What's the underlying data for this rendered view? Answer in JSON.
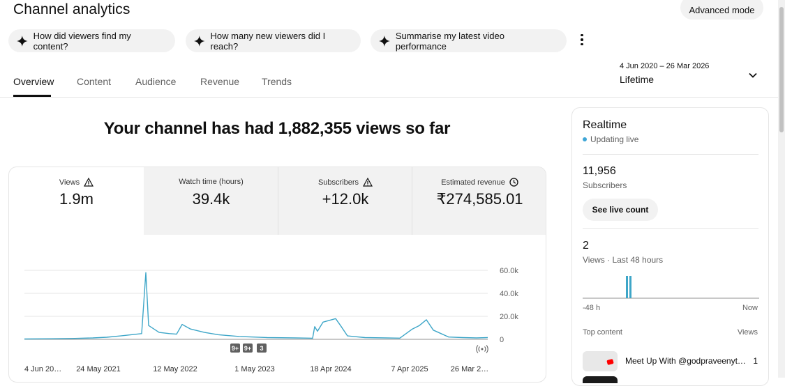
{
  "header": {
    "title": "Channel analytics",
    "advanced_mode_label": "Advanced mode"
  },
  "suggestions": [
    {
      "label": "How did viewers find my content?"
    },
    {
      "label": "How many new viewers did I reach?"
    },
    {
      "label": "Summarise my latest video performance"
    }
  ],
  "tabs": [
    {
      "label": "Overview",
      "active": true
    },
    {
      "label": "Content"
    },
    {
      "label": "Audience"
    },
    {
      "label": "Revenue"
    },
    {
      "label": "Trends"
    }
  ],
  "date_picker": {
    "range": "4 Jun 2020 – 26 Mar 2026",
    "label": "Lifetime"
  },
  "headline": "Your channel has had 1,882,355 views so far",
  "metrics": [
    {
      "label": "Views",
      "value": "1.9m",
      "icon": "warning-icon"
    },
    {
      "label": "Watch time (hours)",
      "value": "39.4k"
    },
    {
      "label": "Subscribers",
      "value": "+12.0k",
      "icon": "warning-icon"
    },
    {
      "label": "Estimated revenue",
      "value": "₹274,585.01",
      "icon": "clock-icon"
    }
  ],
  "chart_markers": [
    "9+",
    "9+",
    "3"
  ],
  "chart_data": {
    "type": "line",
    "title": "",
    "ylabel": "",
    "y_ticks": [
      "60.0k",
      "40.0k",
      "20.0k",
      "0"
    ],
    "ylim": [
      0,
      60000
    ],
    "x_ticks": [
      "4 Jun 20…",
      "24 May 2021",
      "12 May 2022",
      "1 May 2023",
      "18 Apr 2024",
      "7 Apr 2025",
      "26 Mar 2…"
    ],
    "series": [
      {
        "color": "#3ea6c8",
        "x": [
          "2020-06",
          "2020-09",
          "2020-12",
          "2021-03",
          "2021-05",
          "2021-07",
          "2021-08",
          "2021-09",
          "2021-09b",
          "2021-10",
          "2021-11",
          "2021-12",
          "2022-01",
          "2022-02",
          "2022-03",
          "2022-05",
          "2022-07",
          "2022-10",
          "2023-01",
          "2023-05",
          "2023-08",
          "2023-11",
          "2023-12",
          "2024-01",
          "2024-02",
          "2024-03",
          "2024-04",
          "2024-05",
          "2024-07",
          "2024-10",
          "2025-01",
          "2025-02",
          "2025-03",
          "2025-04",
          "2025-05",
          "2025-07",
          "2025-10",
          "2026-01",
          "2026-03"
        ],
        "values": [
          300,
          500,
          700,
          1200,
          1800,
          3000,
          4000,
          5000,
          58000,
          12000,
          6000,
          5000,
          4500,
          13000,
          9000,
          6000,
          4000,
          2500,
          1500,
          1200,
          1000,
          900,
          11000,
          7000,
          15000,
          18000,
          12000,
          3000,
          1500,
          1200,
          1000,
          9000,
          12000,
          17000,
          8000,
          2000,
          1500,
          1200,
          1500
        ]
      }
    ],
    "grid": true
  },
  "realtime": {
    "title": "Realtime",
    "status": "Updating live",
    "subscribers_value": "11,956",
    "subscribers_label": "Subscribers",
    "live_count_button": "See live count",
    "views_value": "2",
    "views_label": "Views · Last 48 hours",
    "axis_start": "-48 h",
    "axis_end": "Now",
    "top_content_label": "Top content",
    "views_column_label": "Views",
    "top_content": [
      {
        "title": "Meet Up With @godpraveenyt…",
        "views": "1"
      }
    ]
  }
}
